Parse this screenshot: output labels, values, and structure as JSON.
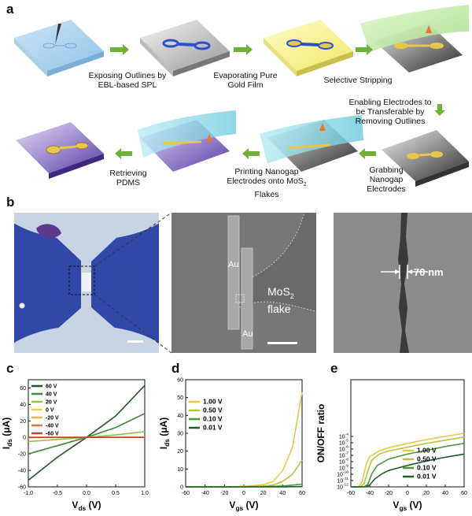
{
  "panels": {
    "a": "a",
    "b": "b",
    "c": "c",
    "d": "d",
    "e": "e"
  },
  "steps": {
    "s1": "Exposing Outlines by EBL-based SPL",
    "s2": "Evaporating Pure Gold Film",
    "s3": "Selective Stripping",
    "s4": "Enabling Electrodes to be Transferable by Removing Outlines",
    "s5": "Grabbing Nanogap Electrodes",
    "s6_pre": "Printing Nanogap Electrodes onto MoS",
    "s6_sub": "2",
    "s6_post": " Flakes",
    "s7": "Retrieving PDMS"
  },
  "micrographs": {
    "au_top": "Au",
    "au_bottom": "Au",
    "mos2_base": "MoS",
    "mos2_sub": "2",
    "mos2_line2": "flake",
    "gap": "70 nm"
  },
  "colors": {
    "arrow": "#6fb23a",
    "gold": "#e8c64a",
    "orange": "#e8743a",
    "mic_blue": "#3049a8",
    "sem_gray": "#7a7a7a"
  },
  "chart_data": [
    {
      "type": "line",
      "panel": "c",
      "xlabel": "V_ds (V)",
      "ylabel": "I_ds (μA)",
      "xlim": [
        -1.0,
        1.0
      ],
      "ylim": [
        -60,
        70
      ],
      "xticks": [
        "-1.0",
        "-0.5",
        "0.0",
        "0.5",
        "1.0"
      ],
      "yticks": [
        "-60",
        "-40",
        "-20",
        "0",
        "20",
        "40",
        "60"
      ],
      "legend_position": "top-left",
      "series": [
        {
          "name": "60 V",
          "color": "#1f5a2a",
          "x": [
            -1,
            -0.5,
            0,
            0.5,
            1
          ],
          "y": [
            -52,
            -24,
            0,
            26,
            63
          ]
        },
        {
          "name": "40 V",
          "color": "#3d8a3a",
          "x": [
            -1,
            -0.5,
            0,
            0.5,
            1
          ],
          "y": [
            -20,
            -10,
            0,
            12,
            29
          ]
        },
        {
          "name": "20 V",
          "color": "#8fc24a",
          "x": [
            -1,
            -0.5,
            0,
            0.5,
            1
          ],
          "y": [
            -5,
            -2.5,
            0,
            3,
            7
          ]
        },
        {
          "name": "0 V",
          "color": "#e6d94a",
          "x": [
            -1,
            -0.5,
            0,
            0.5,
            1
          ],
          "y": [
            -0.5,
            -0.2,
            0,
            0.2,
            0.5
          ]
        },
        {
          "name": "-20 V",
          "color": "#f0b04a",
          "x": [
            -1,
            -0.5,
            0,
            0.5,
            1
          ],
          "y": [
            0,
            0,
            0,
            0,
            0
          ]
        },
        {
          "name": "-40 V",
          "color": "#e8743a",
          "x": [
            -1,
            -0.5,
            0,
            0.5,
            1
          ],
          "y": [
            0,
            0,
            0,
            0,
            0
          ]
        },
        {
          "name": "-60 V",
          "color": "#c8402a",
          "x": [
            -1,
            -0.5,
            0,
            0.5,
            1
          ],
          "y": [
            0,
            0,
            0,
            0,
            0
          ]
        }
      ]
    },
    {
      "type": "line",
      "panel": "d",
      "xlabel": "V_gs (V)",
      "ylabel": "I_ds (μA)",
      "xlim": [
        -60,
        60
      ],
      "ylim": [
        0,
        60
      ],
      "xticks": [
        "-60",
        "-40",
        "-20",
        "0",
        "20",
        "40",
        "60"
      ],
      "yticks": [
        "0",
        "10",
        "20",
        "30",
        "40",
        "50",
        "60"
      ],
      "legend_position": "top-left",
      "series": [
        {
          "name": "1.00 V",
          "color": "#e8c64a",
          "x": [
            -60,
            -20,
            0,
            20,
            30,
            40,
            50,
            60
          ],
          "y": [
            0,
            0,
            0.3,
            1.2,
            3,
            9,
            22,
            53
          ]
        },
        {
          "name": "0.50 V",
          "color": "#b8c23a",
          "x": [
            -60,
            -20,
            0,
            20,
            30,
            40,
            50,
            60
          ],
          "y": [
            0,
            0,
            0.1,
            0.4,
            1,
            3,
            7,
            15
          ]
        },
        {
          "name": "0.10 V",
          "color": "#4a9a3a",
          "x": [
            -60,
            -20,
            0,
            20,
            40,
            60
          ],
          "y": [
            0,
            0,
            0,
            0.1,
            0.5,
            1.5
          ]
        },
        {
          "name": "0.01 V",
          "color": "#1f5a2a",
          "x": [
            -60,
            -20,
            0,
            20,
            40,
            60
          ],
          "y": [
            0,
            0,
            0,
            0,
            0.05,
            0.15
          ]
        }
      ]
    },
    {
      "type": "line",
      "panel": "e",
      "xlabel": "V_gs (V)",
      "ylabel": "ON/OFF ratio",
      "xlim": [
        -60,
        60
      ],
      "ylim": [
        -12,
        5
      ],
      "log_scale_y": true,
      "xticks": [
        "-60",
        "-40",
        "-20",
        "0",
        "20",
        "40",
        "60"
      ],
      "yticks": [
        "10^-12",
        "10^-11",
        "10^-10",
        "10^-9",
        "10^-8",
        "10^-7",
        "10^-6",
        "10^-5",
        "10^-4"
      ],
      "legend_position": "bottom-right",
      "series": [
        {
          "name": "1.00 V",
          "color": "#e8c64a",
          "x": [
            -60,
            -52,
            -48,
            -44,
            -40,
            -30,
            -20,
            0,
            20,
            40,
            60
          ],
          "y": [
            -12,
            -12,
            -11.2,
            -8.5,
            -7.2,
            -6.3,
            -5.8,
            -5.1,
            -4.5,
            -4,
            -3.5
          ]
        },
        {
          "name": "0.50 V",
          "color": "#b8c23a",
          "x": [
            -60,
            -50,
            -46,
            -42,
            -38,
            -30,
            -20,
            0,
            20,
            40,
            60
          ],
          "y": [
            -12,
            -12,
            -11.5,
            -9.5,
            -7.8,
            -6.8,
            -6.3,
            -5.7,
            -5.1,
            -4.6,
            -4.1
          ]
        },
        {
          "name": "0.10 V",
          "color": "#4a9a3a",
          "x": [
            -60,
            -46,
            -42,
            -38,
            -32,
            -20,
            0,
            20,
            40,
            60
          ],
          "y": [
            -12,
            -12,
            -11.6,
            -10,
            -8.6,
            -7.6,
            -6.8,
            -6.2,
            -5.6,
            -5.1
          ]
        },
        {
          "name": "0.01 V",
          "color": "#1f5a2a",
          "x": [
            -60,
            -44,
            -40,
            -35,
            -28,
            -20,
            0,
            20,
            40,
            60
          ],
          "y": [
            -12,
            -12,
            -11.7,
            -10.8,
            -10,
            -9.4,
            -8.6,
            -7.9,
            -7.3,
            -6.8
          ]
        }
      ]
    }
  ]
}
